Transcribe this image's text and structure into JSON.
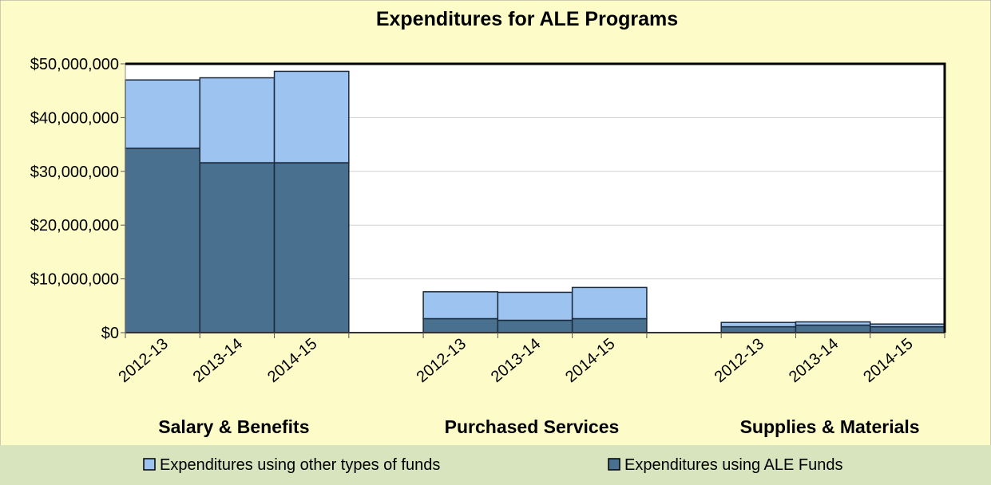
{
  "chart_data": {
    "type": "stacked_bar",
    "title": "Expenditures for ALE Programs",
    "categories": [
      "2012-13",
      "2013-14",
      "2014-15",
      null,
      "2012-13",
      "2013-14",
      "2014-15",
      null,
      "2012-13",
      "2013-14",
      "2014-15"
    ],
    "groups": [
      "Salary & Benefits",
      "Purchased Services",
      "Supplies & Materials"
    ],
    "series": [
      {
        "name": "Expenditures using ALE Funds",
        "color": "#4a7090",
        "values": [
          34300000,
          31600000,
          31600000,
          null,
          2600000,
          2300000,
          2600000,
          null,
          1100000,
          1400000,
          1100000
        ]
      },
      {
        "name": "Expenditures using other types of funds",
        "color": "#9dc3f0",
        "values": [
          12700000,
          15800000,
          17000000,
          null,
          5000000,
          5200000,
          5800000,
          null,
          800000,
          600000,
          500000
        ]
      }
    ],
    "legend_order": [
      1,
      0
    ],
    "ylim": [
      0,
      50000000
    ],
    "yticks": [
      {
        "value": 0,
        "label": "$0"
      },
      {
        "value": 10000000,
        "label": "$10,000,000"
      },
      {
        "value": 20000000,
        "label": "$20,000,000"
      },
      {
        "value": 30000000,
        "label": "$30,000,000"
      },
      {
        "value": 40000000,
        "label": "$40,000,000"
      },
      {
        "value": 50000000,
        "label": "$50,000,000"
      }
    ],
    "grid": true
  }
}
